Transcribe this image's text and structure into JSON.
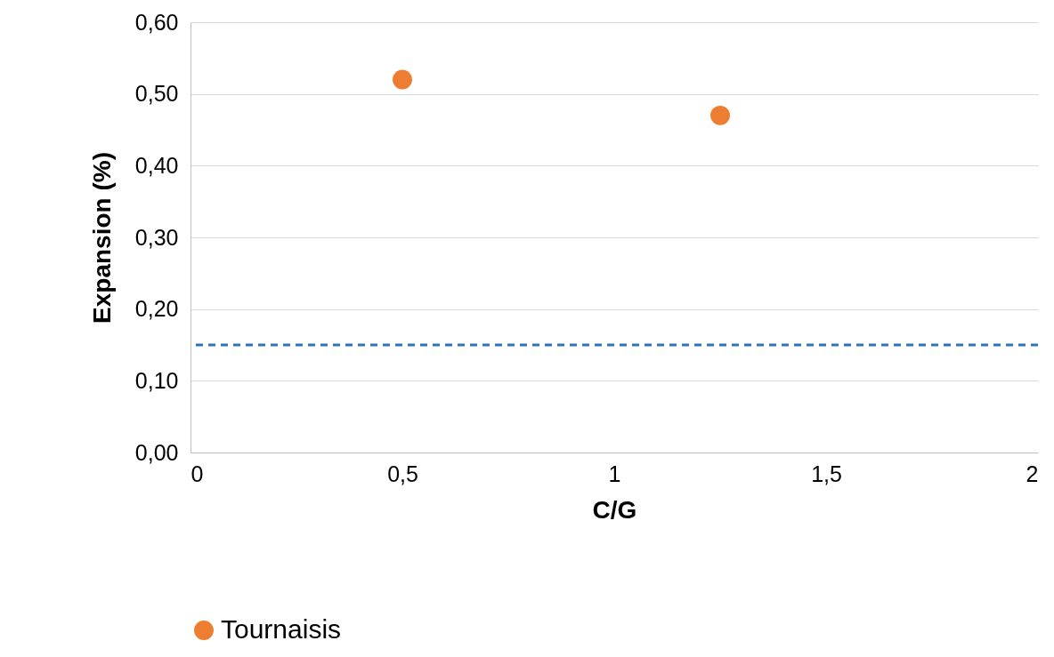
{
  "chart_data": {
    "type": "scatter",
    "xlabel": "C/G",
    "ylabel": "Expansion (%)",
    "x": [
      0.5,
      1.25
    ],
    "series": [
      {
        "name": "Tournaisis",
        "color": "#ed7d31",
        "values": [
          0.52,
          0.47
        ]
      }
    ],
    "xlim": [
      0,
      2
    ],
    "xticks": [
      0,
      {
        "value": 0.5,
        "label": "0,5"
      },
      1,
      {
        "value": 1.5,
        "label": "1,5"
      },
      2
    ],
    "ylim": [
      0,
      0.6
    ],
    "yticks": [
      {
        "value": 0,
        "label": "0,00"
      },
      {
        "value": 0.1,
        "label": "0,10"
      },
      {
        "value": 0.2,
        "label": "0,20"
      },
      {
        "value": 0.3,
        "label": "0,30"
      },
      {
        "value": 0.4,
        "label": "0,40"
      },
      {
        "value": 0.5,
        "label": "0,50"
      },
      {
        "value": 0.6,
        "label": "0,60"
      }
    ],
    "ref_lines": [
      {
        "axis": "y",
        "value": 0.15,
        "color": "#2e75b6",
        "line_style": "dashed"
      }
    ],
    "grid": "y",
    "legend": "bottom",
    "marker": "circle"
  }
}
